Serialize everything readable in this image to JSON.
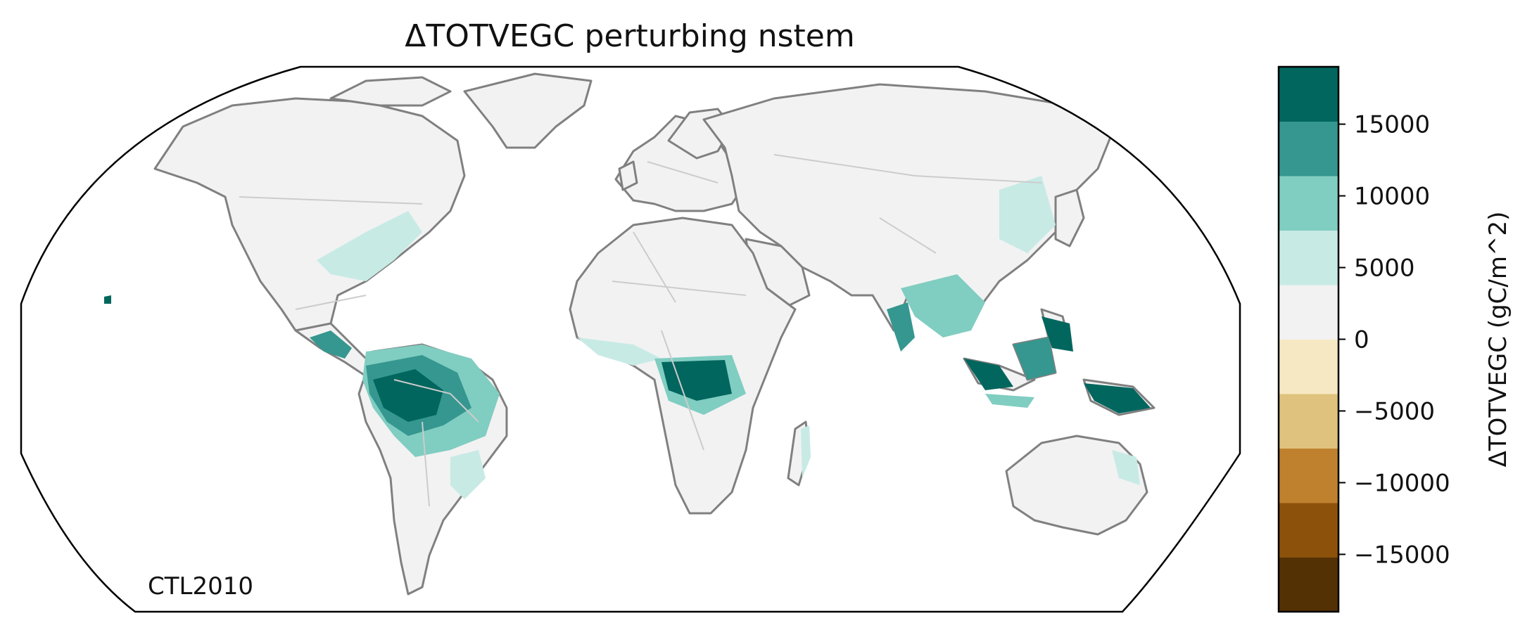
{
  "title": "ΔTOTVEGC perturbing nstem",
  "annotation": "CTL2010",
  "colorbar": {
    "label": "ΔTOTVEGC (gC/m^2)",
    "range": [
      -19000,
      19000
    ],
    "bounds": [
      -19000,
      -15200,
      -11400,
      -7600,
      -3800,
      0,
      3800,
      7600,
      11400,
      15200,
      19000
    ],
    "colors": [
      "#543005",
      "#8c510a",
      "#bf812d",
      "#dfc27d",
      "#f6e8c3",
      "#f2f2f2",
      "#c7eae5",
      "#80cdc1",
      "#35978f",
      "#01665e",
      "#003c30"
    ],
    "ticks": [
      {
        "value": 15000,
        "label": "15000"
      },
      {
        "value": 10000,
        "label": "10000"
      },
      {
        "value": 5000,
        "label": "5000"
      },
      {
        "value": 0,
        "label": "0"
      },
      {
        "value": -5000,
        "label": "−5000"
      },
      {
        "value": -10000,
        "label": "−10000"
      },
      {
        "value": -15000,
        "label": "−15000"
      }
    ]
  },
  "map": {
    "projection": "Robinson",
    "land_color": "#f2f2f2",
    "coast_color": "#808080",
    "border_color": "#cccccc",
    "outline_color": "#000000"
  },
  "regions": [
    {
      "name": "Amazon",
      "level": "high"
    },
    {
      "name": "Congo Basin",
      "level": "high"
    },
    {
      "name": "Indonesia / New Guinea",
      "level": "high"
    },
    {
      "name": "Southeast Asia",
      "level": "medium"
    },
    {
      "name": "Eastern United States",
      "level": "low"
    },
    {
      "name": "Central America",
      "level": "medium"
    },
    {
      "name": "Eastern China",
      "level": "low"
    },
    {
      "name": "West Africa coast",
      "level": "low"
    },
    {
      "name": "Madagascar east coast",
      "level": "low"
    },
    {
      "name": "Atlantic Forest Brazil",
      "level": "low"
    }
  ]
}
